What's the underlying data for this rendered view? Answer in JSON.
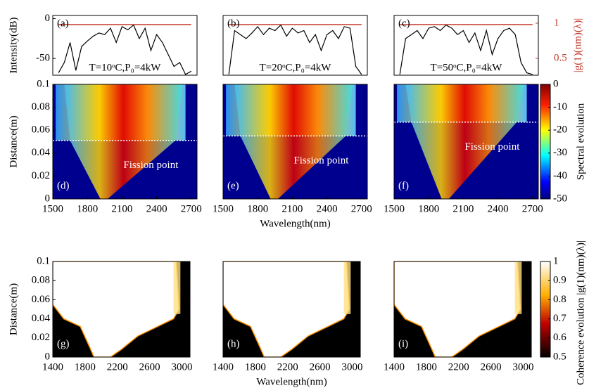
{
  "chart_data": [
    {
      "type": "line",
      "panel_label": "(a)",
      "annotation": "T=10ᵒC,P₀=4kW",
      "ylabel": "Intensity(dB)",
      "x": [
        1550,
        1600,
        1650,
        1700,
        1750,
        1800,
        1850,
        1900,
        1950,
        2000,
        2050,
        2100,
        2150,
        2200,
        2250,
        2300,
        2350,
        2400,
        2450,
        2500,
        2550,
        2600,
        2650,
        2700
      ],
      "xlim": [
        1500,
        2750
      ],
      "ylim": [
        -71,
        4
      ],
      "yticks": [
        0,
        -50
      ],
      "y2lim": [
        0.26,
        1.11
      ],
      "series": [
        {
          "color": "#000000",
          "values": [
            -68,
            -55,
            -30,
            -65,
            -35,
            -28,
            -22,
            -18,
            -20,
            -12,
            -30,
            -10,
            -14,
            -8,
            -25,
            -12,
            -40,
            -20,
            -30,
            -45,
            -60,
            -55,
            -70,
            -66
          ]
        },
        {
          "color": "#c0392b",
          "axis": "y2",
          "values": [
            0.98,
            0.98,
            0.98,
            0.98,
            0.98,
            0.98,
            0.98,
            0.98,
            0.98,
            0.98,
            0.98,
            0.98,
            0.98,
            0.98,
            0.98,
            0.98,
            0.98,
            0.98,
            0.98,
            0.98,
            0.98,
            0.98,
            0.98,
            0.98
          ]
        }
      ]
    },
    {
      "type": "line",
      "panel_label": "(b)",
      "annotation": "T=20ᵒC,P₀=4kW",
      "x": [
        1550,
        1600,
        1650,
        1700,
        1750,
        1800,
        1850,
        1900,
        1950,
        2000,
        2050,
        2100,
        2150,
        2200,
        2250,
        2300,
        2350,
        2400,
        2450,
        2500,
        2550,
        2600,
        2650,
        2700
      ],
      "xlim": [
        1500,
        2750
      ],
      "ylim": [
        -71,
        4
      ],
      "y2lim": [
        0.26,
        1.11
      ],
      "series": [
        {
          "color": "#000000",
          "values": [
            -70,
            -15,
            -20,
            -25,
            -18,
            -10,
            -20,
            -12,
            -15,
            -8,
            -22,
            -12,
            -18,
            -15,
            -30,
            -20,
            -40,
            -20,
            -15,
            -25,
            -10,
            -12,
            -60,
            -70
          ]
        },
        {
          "color": "#c0392b",
          "axis": "y2",
          "values": [
            0.98,
            0.98,
            0.98,
            0.98,
            0.98,
            0.98,
            0.98,
            0.98,
            0.98,
            0.98,
            0.98,
            0.98,
            0.98,
            0.98,
            0.98,
            0.98,
            0.98,
            0.98,
            0.98,
            0.98,
            0.98,
            0.98,
            0.98,
            0.98
          ]
        }
      ]
    },
    {
      "type": "line",
      "panel_label": "(c)",
      "annotation": "T=50ᵒC,P₀=4kW",
      "y2label": "|g(1)(nm)(λ)|",
      "x": [
        1550,
        1600,
        1650,
        1700,
        1750,
        1800,
        1850,
        1900,
        1950,
        2000,
        2050,
        2100,
        2150,
        2200,
        2250,
        2300,
        2350,
        2400,
        2450,
        2500,
        2550,
        2600,
        2650,
        2700
      ],
      "xlim": [
        1500,
        2750
      ],
      "ylim": [
        -71,
        4
      ],
      "y2lim": [
        0.26,
        1.11
      ],
      "y2ticks": [
        1,
        0.5
      ],
      "series": [
        {
          "color": "#000000",
          "values": [
            -70,
            -25,
            -20,
            -15,
            -25,
            -12,
            -10,
            -15,
            -8,
            -12,
            -20,
            -15,
            -30,
            -18,
            -40,
            -15,
            -45,
            -25,
            -15,
            -12,
            -20,
            -55,
            -68,
            -70
          ]
        },
        {
          "color": "#c0392b",
          "axis": "y2",
          "values": [
            0.98,
            0.98,
            0.98,
            0.98,
            0.98,
            0.98,
            0.98,
            0.98,
            0.98,
            0.98,
            0.98,
            0.98,
            0.98,
            0.98,
            0.98,
            0.98,
            0.98,
            0.98,
            0.98,
            0.98,
            0.98,
            0.98,
            0.98,
            0.98
          ]
        }
      ]
    },
    {
      "type": "heatmap",
      "colormap": "jet",
      "panel_label": "(d)",
      "annotation": "Fission point",
      "fission_distance": 0.051,
      "ylabel": "Distance(m)",
      "xlim": [
        1500,
        2750
      ],
      "xticks": [
        1500,
        1800,
        2100,
        2400,
        2700
      ],
      "ylim": [
        0,
        0.1
      ],
      "yticks": [
        0,
        0.02,
        0.04,
        0.06,
        0.08,
        0.1
      ]
    },
    {
      "type": "heatmap",
      "colormap": "jet",
      "panel_label": "(e)",
      "annotation": "Fission point",
      "fission_distance": 0.055,
      "xlabel": "Wavelength(nm)",
      "xlim": [
        1500,
        2750
      ],
      "xticks": [
        1500,
        1800,
        2100,
        2400,
        2700
      ],
      "ylim": [
        0,
        0.1
      ]
    },
    {
      "type": "heatmap",
      "colormap": "jet",
      "panel_label": "(f)",
      "annotation": "Fission point",
      "fission_distance": 0.067,
      "xlim": [
        1500,
        2750
      ],
      "xticks": [
        1500,
        1800,
        2100,
        2400,
        2700
      ],
      "ylim": [
        0,
        0.1
      ],
      "colorbar": {
        "label": "Spectral evolution",
        "lim": [
          -50,
          0
        ],
        "ticks": [
          0,
          -10,
          -20,
          -30,
          -40,
          -50
        ]
      }
    },
    {
      "type": "heatmap",
      "colormap": "hot",
      "panel_label": "(g)",
      "ylabel": "Distance(m)",
      "xlim": [
        1400,
        3100
      ],
      "xticks": [
        1400,
        1800,
        2200,
        2600,
        3000
      ],
      "ylim": [
        0,
        0.1
      ],
      "yticks": [
        0,
        0.02,
        0.04,
        0.06,
        0.08,
        0.1
      ]
    },
    {
      "type": "heatmap",
      "colormap": "hot",
      "panel_label": "(h)",
      "xlabel": "Wavelength(nm)",
      "xlim": [
        1400,
        3100
      ],
      "xticks": [
        1400,
        1800,
        2200,
        2600,
        3000
      ],
      "ylim": [
        0,
        0.1
      ]
    },
    {
      "type": "heatmap",
      "colormap": "hot",
      "panel_label": "(i)",
      "xlim": [
        1400,
        3100
      ],
      "xticks": [
        1400,
        1800,
        2200,
        2600,
        3000
      ],
      "ylim": [
        0,
        0.1
      ],
      "colorbar": {
        "label": "Coherence evolution |g(1)(nm)(λ)|",
        "lim": [
          0.5,
          1
        ],
        "ticks": [
          0.5,
          0.6,
          0.7,
          0.8,
          0.9,
          1
        ]
      }
    }
  ]
}
